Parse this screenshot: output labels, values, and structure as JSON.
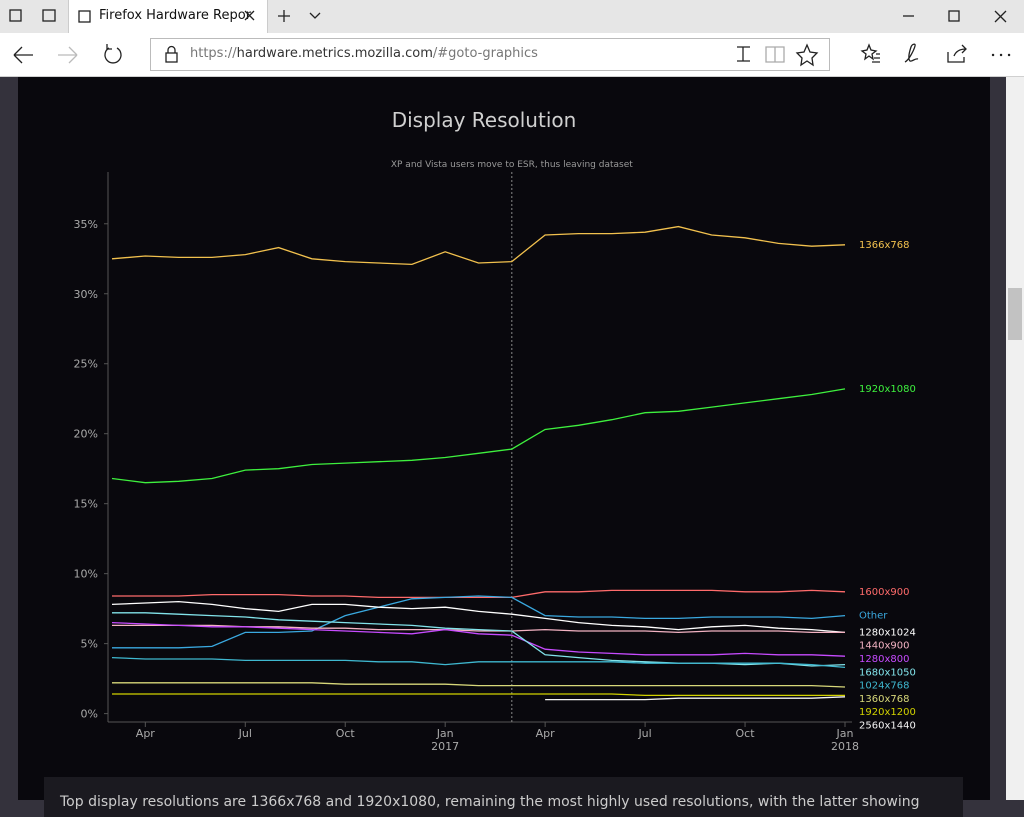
{
  "browser": {
    "tab_title": "Firefox Hardware Repor",
    "url_scheme": "https://",
    "url_host": "hardware.metrics.mozilla.com",
    "url_path": "/#goto-graphics"
  },
  "chart_data": {
    "type": "line",
    "title": "Display Resolution",
    "annotation": {
      "text": "XP and Vista users move to ESR, thus leaving dataset",
      "x": "2017-03"
    },
    "x": [
      "2016-03",
      "2016-04",
      "2016-05",
      "2016-06",
      "2016-07",
      "2016-08",
      "2016-09",
      "2016-10",
      "2016-11",
      "2016-12",
      "2017-01",
      "2017-02",
      "2017-03",
      "2017-04",
      "2017-05",
      "2017-06",
      "2017-07",
      "2017-08",
      "2017-09",
      "2017-10",
      "2017-11",
      "2017-12",
      "2018-01"
    ],
    "xlim": [
      "2016-03",
      "2018-01"
    ],
    "xticks": [
      {
        "value": "2016-04",
        "label": "Apr"
      },
      {
        "value": "2016-07",
        "label": "Jul"
      },
      {
        "value": "2016-10",
        "label": "Oct"
      },
      {
        "value": "2017-01",
        "label": "Jan\n2017"
      },
      {
        "value": "2017-04",
        "label": "Apr"
      },
      {
        "value": "2017-07",
        "label": "Jul"
      },
      {
        "value": "2017-10",
        "label": "Oct"
      },
      {
        "value": "2018-01",
        "label": "Jan\n2018"
      }
    ],
    "ylim": [
      -0.6,
      38.7
    ],
    "yticks": [
      {
        "value": 0,
        "label": "0%"
      },
      {
        "value": 5,
        "label": "5%"
      },
      {
        "value": 10,
        "label": "10%"
      },
      {
        "value": 15,
        "label": "15%"
      },
      {
        "value": 20,
        "label": "20%"
      },
      {
        "value": 25,
        "label": "25%"
      },
      {
        "value": 30,
        "label": "30%"
      },
      {
        "value": 35,
        "label": "35%"
      }
    ],
    "series": [
      {
        "name": "1366x768",
        "color": "#f2c14e",
        "values": [
          32.5,
          32.7,
          32.6,
          32.6,
          32.8,
          33.3,
          32.5,
          32.3,
          32.2,
          32.1,
          33.0,
          32.2,
          32.3,
          34.2,
          34.3,
          34.3,
          34.4,
          34.8,
          34.2,
          34.0,
          33.6,
          33.4,
          33.5
        ]
      },
      {
        "name": "1920x1080",
        "color": "#3ef03e",
        "values": [
          16.8,
          16.5,
          16.6,
          16.8,
          17.4,
          17.5,
          17.8,
          17.9,
          18.0,
          18.1,
          18.3,
          18.6,
          18.9,
          20.3,
          20.6,
          21.0,
          21.5,
          21.6,
          21.9,
          22.2,
          22.5,
          22.8,
          23.2
        ]
      },
      {
        "name": "1600x900",
        "color": "#ff6b6b",
        "values": [
          8.4,
          8.4,
          8.4,
          8.5,
          8.5,
          8.5,
          8.4,
          8.4,
          8.3,
          8.3,
          8.3,
          8.3,
          8.3,
          8.7,
          8.7,
          8.8,
          8.8,
          8.8,
          8.8,
          8.7,
          8.7,
          8.8,
          8.7
        ]
      },
      {
        "name": "Other",
        "color": "#3aa9e0",
        "values": [
          4.7,
          4.7,
          4.7,
          4.8,
          5.8,
          5.8,
          5.9,
          7.0,
          7.6,
          8.2,
          8.3,
          8.4,
          8.3,
          7.0,
          6.9,
          6.9,
          6.8,
          6.8,
          6.9,
          6.9,
          6.9,
          6.8,
          7.0
        ]
      },
      {
        "name": "1280x1024",
        "color": "#ffffff",
        "values": [
          7.8,
          7.9,
          8.0,
          7.8,
          7.5,
          7.3,
          7.8,
          7.8,
          7.6,
          7.5,
          7.6,
          7.3,
          7.1,
          6.8,
          6.5,
          6.3,
          6.2,
          6.0,
          6.2,
          6.3,
          6.1,
          6.0,
          5.8
        ]
      },
      {
        "name": "1440x900",
        "color": "#f3b3c3",
        "values": [
          6.3,
          6.3,
          6.3,
          6.3,
          6.2,
          6.2,
          6.1,
          6.1,
          6.0,
          6.0,
          6.0,
          5.9,
          5.9,
          6.0,
          5.9,
          5.9,
          5.9,
          5.8,
          5.9,
          5.9,
          5.9,
          5.8,
          5.8
        ]
      },
      {
        "name": "1280x800",
        "color": "#c74bff",
        "values": [
          6.5,
          6.4,
          6.3,
          6.2,
          6.2,
          6.1,
          6.0,
          5.9,
          5.8,
          5.7,
          6.0,
          5.7,
          5.6,
          4.6,
          4.4,
          4.3,
          4.2,
          4.2,
          4.2,
          4.3,
          4.2,
          4.2,
          4.1
        ]
      },
      {
        "name": "1680x1050",
        "color": "#82e3ea",
        "values": [
          7.2,
          7.2,
          7.1,
          7.0,
          6.9,
          6.7,
          6.6,
          6.5,
          6.4,
          6.3,
          6.1,
          6.0,
          5.9,
          4.2,
          4.0,
          3.8,
          3.7,
          3.6,
          3.6,
          3.5,
          3.6,
          3.4,
          3.5
        ]
      },
      {
        "name": "1024x768",
        "color": "#3fb8d0",
        "values": [
          4.0,
          3.9,
          3.9,
          3.9,
          3.8,
          3.8,
          3.8,
          3.8,
          3.7,
          3.7,
          3.5,
          3.7,
          3.7,
          3.7,
          3.7,
          3.7,
          3.6,
          3.6,
          3.6,
          3.6,
          3.6,
          3.5,
          3.3
        ]
      },
      {
        "name": "1360x768",
        "color": "#d8d87a",
        "values": [
          2.2,
          2.2,
          2.2,
          2.2,
          2.2,
          2.2,
          2.2,
          2.1,
          2.1,
          2.1,
          2.1,
          2.0,
          2.0,
          2.0,
          2.0,
          2.0,
          2.0,
          2.0,
          2.0,
          2.0,
          2.0,
          2.0,
          1.9
        ]
      },
      {
        "name": "1920x1200",
        "color": "#d2d200",
        "values": [
          1.4,
          1.4,
          1.4,
          1.4,
          1.4,
          1.4,
          1.4,
          1.4,
          1.4,
          1.4,
          1.4,
          1.4,
          1.4,
          1.4,
          1.4,
          1.4,
          1.3,
          1.3,
          1.3,
          1.3,
          1.3,
          1.3,
          1.3
        ]
      },
      {
        "name": "2560x1440",
        "color": "#f4f4f4",
        "values": [
          null,
          null,
          null,
          null,
          null,
          null,
          null,
          null,
          null,
          null,
          null,
          null,
          null,
          1.0,
          1.0,
          1.0,
          1.0,
          1.1,
          1.1,
          1.1,
          1.1,
          1.1,
          1.2
        ]
      }
    ]
  },
  "footer_text": "Top display resolutions are 1366x768 and 1920x1080, remaining the most highly used resolutions, with the latter showing"
}
